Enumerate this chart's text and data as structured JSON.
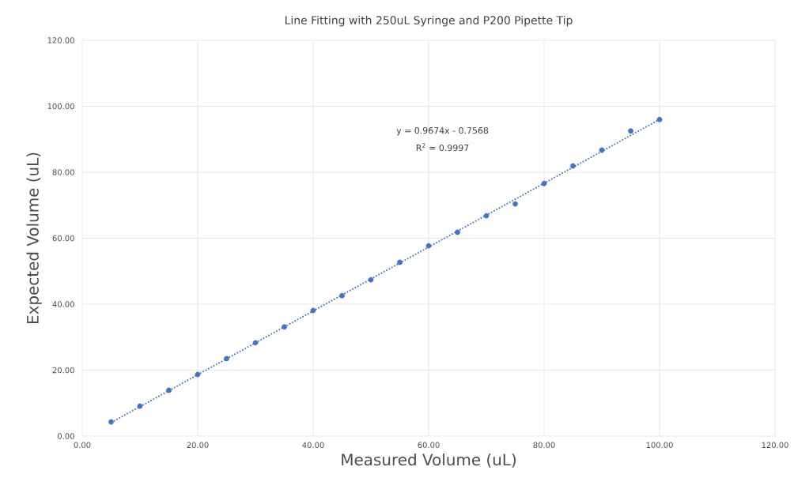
{
  "chart_data": {
    "type": "scatter",
    "title": "Line Fitting with 250uL Syringe and P200 Pipette Tip",
    "xlabel": "Measured Volume (uL)",
    "ylabel": "Expected Volume (uL)",
    "series": [
      {
        "color": "#4472c4",
        "marker": "circle",
        "x": [
          5,
          10,
          15,
          20,
          25,
          30,
          35,
          40,
          45,
          50,
          55,
          60,
          65,
          70,
          75,
          80,
          85,
          90,
          95,
          100
        ],
        "values": [
          4.3,
          9.1,
          13.9,
          18.7,
          23.5,
          28.3,
          33.1,
          38.1,
          42.6,
          47.4,
          52.7,
          57.7,
          61.8,
          66.8,
          70.4,
          76.6,
          81.9,
          86.7,
          92.5,
          96.0
        ]
      },
      {
        "type": "line",
        "color": "#4472c4",
        "line_style": "dotted",
        "marker": "none",
        "x": [
          5,
          100
        ],
        "values": [
          4.1,
          96.0
        ]
      }
    ],
    "annotations": [
      "y = 0.9674x - 0.7568",
      "R$^{2}$ = 0.9997"
    ],
    "xlim": [
      0,
      120
    ],
    "ylim": [
      0,
      120
    ],
    "xticks": [
      {
        "value": 0,
        "label": "0.00"
      },
      {
        "value": 20,
        "label": "20.00"
      },
      {
        "value": 40,
        "label": "40.00"
      },
      {
        "value": 60,
        "label": "60.00"
      },
      {
        "value": 80,
        "label": "80.00"
      },
      {
        "value": 100,
        "label": "100.00"
      },
      {
        "value": 120,
        "label": "120.00"
      }
    ],
    "yticks": [
      {
        "value": 0,
        "label": "0.00"
      },
      {
        "value": 20,
        "label": "20.00"
      },
      {
        "value": 40,
        "label": "40.00"
      },
      {
        "value": 60,
        "label": "60.00"
      },
      {
        "value": 80,
        "label": "80.00"
      },
      {
        "value": 100,
        "label": "100.00"
      },
      {
        "value": 120,
        "label": "120.00"
      }
    ],
    "grid": true
  }
}
